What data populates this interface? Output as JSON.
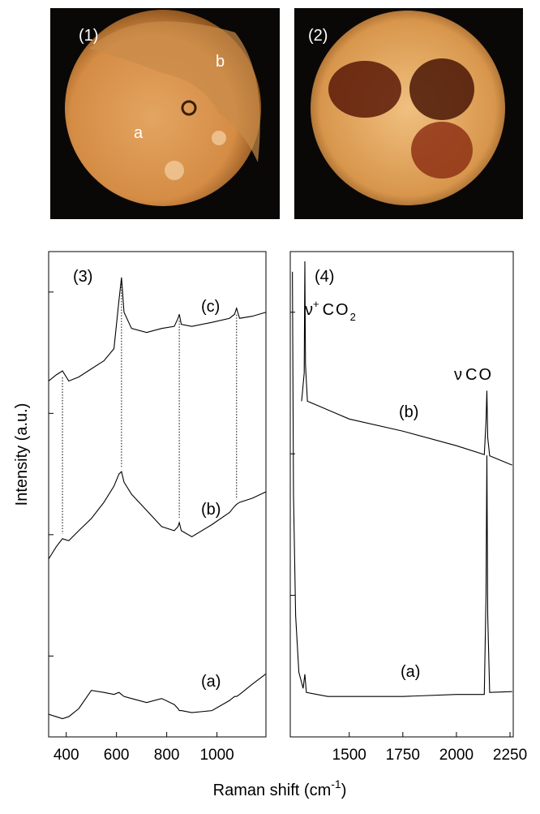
{
  "image_panels": [
    {
      "label": "(1)",
      "regions": [
        "a",
        "b"
      ]
    },
    {
      "label": "(2)"
    }
  ],
  "y_axis_label": "Intensity (a.u.)",
  "x_axis_label": {
    "text": "Raman shift (cm",
    "sup": "-1",
    "close": ")"
  },
  "chart_data": [
    {
      "type": "line",
      "label": "(3)",
      "xlim": [
        330,
        1195
      ],
      "xticks": [
        400,
        600,
        800,
        1000
      ],
      "ylim": [
        0,
        12
      ],
      "yticks": [
        2,
        5,
        8,
        11
      ],
      "x": [
        330,
        360,
        385,
        410,
        450,
        500,
        550,
        590,
        610,
        620,
        630,
        660,
        720,
        780,
        830,
        845,
        850,
        858,
        900,
        980,
        1050,
        1070,
        1078,
        1090,
        1140,
        1195
      ],
      "series": [
        {
          "name": "(c)",
          "color": "#000000",
          "values": [
            8.8,
            8.95,
            9.05,
            8.8,
            8.9,
            9.1,
            9.3,
            9.6,
            10.8,
            11.36,
            10.5,
            10.1,
            10.0,
            10.1,
            10.15,
            10.35,
            10.45,
            10.2,
            10.15,
            10.25,
            10.35,
            10.45,
            10.6,
            10.35,
            10.4,
            10.5
          ]
        },
        {
          "name": "(b)",
          "color": "#000000",
          "values": [
            4.4,
            4.7,
            4.9,
            4.85,
            5.1,
            5.4,
            5.8,
            6.2,
            6.5,
            6.56,
            6.3,
            6.0,
            5.6,
            5.2,
            5.1,
            5.2,
            5.3,
            5.1,
            4.95,
            5.25,
            5.55,
            5.7,
            5.75,
            5.8,
            5.9,
            6.06
          ]
        },
        {
          "name": "(a)",
          "color": "#000000",
          "values": [
            0.56,
            0.5,
            0.45,
            0.5,
            0.7,
            1.15,
            1.1,
            1.05,
            1.1,
            1.05,
            1.0,
            0.95,
            0.85,
            0.95,
            0.8,
            0.7,
            0.65,
            0.65,
            0.6,
            0.65,
            0.9,
            1.0,
            1.0,
            1.05,
            1.3,
            1.56
          ]
        }
      ],
      "reference_lines_x": [
        385,
        620,
        850,
        1078
      ]
    },
    {
      "type": "line",
      "label": "(4)",
      "xlim": [
        1225,
        2265
      ],
      "xticks": [
        1500,
        1750,
        2000,
        2250
      ],
      "ylim": [
        0,
        12
      ],
      "yticks": [
        3.5,
        7,
        10.5
      ],
      "series": [
        {
          "name": "(b)",
          "color": "#000000",
          "x": [
            1278,
            1290,
            1293,
            1296,
            1305,
            1350,
            1500,
            1750,
            2000,
            2130,
            2138,
            2142,
            2146,
            2155,
            2260
          ],
          "values": [
            8.3,
            9.0,
            11.76,
            9.2,
            8.3,
            8.2,
            7.86,
            7.56,
            7.2,
            6.98,
            7.8,
            8.56,
            7.4,
            6.95,
            6.72
          ]
        },
        {
          "name": "(a)",
          "color": "#000000",
          "x": [
            1235,
            1240,
            1250,
            1265,
            1285,
            1293,
            1300,
            1400,
            1750,
            2000,
            2130,
            2138,
            2142,
            2146,
            2155,
            2260
          ],
          "values": [
            11.5,
            6.0,
            3.0,
            1.6,
            1.2,
            1.55,
            1.1,
            1.0,
            1.0,
            1.05,
            1.05,
            3.5,
            6.96,
            3.0,
            1.1,
            1.12
          ]
        }
      ],
      "peak_labels": [
        {
          "symbol": "ν",
          "sup": "+",
          "species": "CO",
          "sub": "2"
        },
        {
          "symbol": "ν",
          "species": "CO"
        }
      ]
    }
  ]
}
